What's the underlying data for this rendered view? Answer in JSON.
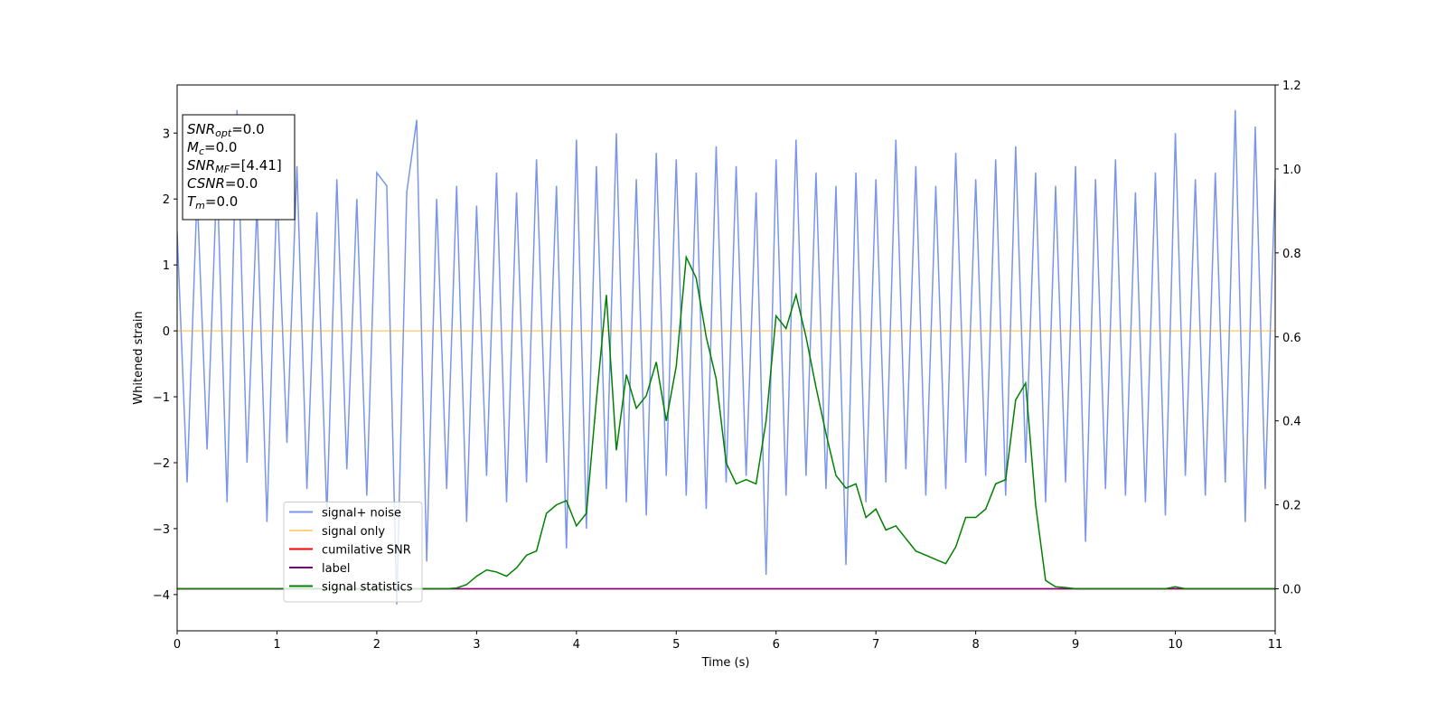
{
  "chart_data": {
    "type": "line",
    "x_label": "Time (s)",
    "y_label": "Whitened strain",
    "xlim": [
      0,
      11
    ],
    "ylim": [
      -4.55,
      3.73
    ],
    "y2lim": [
      -0.1,
      1.2
    ],
    "xticks": [
      0,
      1,
      2,
      3,
      4,
      5,
      6,
      7,
      8,
      9,
      10,
      11
    ],
    "yticks": [
      {
        "value": -4,
        "label": "−4"
      },
      {
        "value": -3,
        "label": "−3"
      },
      {
        "value": -2,
        "label": "−2"
      },
      {
        "value": -1,
        "label": "−1"
      },
      0,
      1,
      2,
      3
    ],
    "y2ticks": [
      {
        "value": 0,
        "label": "0.0"
      },
      0.2,
      0.4,
      0.6,
      0.8,
      {
        "value": 1,
        "label": "1.0"
      },
      1.2
    ],
    "legend": "lower left",
    "annotation": [
      {
        "main": "SNR",
        "sub": "opt",
        "rest": "=0.0"
      },
      {
        "main": "M",
        "sub": "c",
        "rest": "=0.0"
      },
      {
        "main": "SNR",
        "sub": "MF",
        "rest": "=[4.41]"
      },
      {
        "main": "CSNR",
        "rest": "=0.0"
      },
      {
        "main": "T",
        "sub": "m",
        "rest": "=0.0"
      }
    ],
    "x": [
      0,
      0.1,
      0.2,
      0.3,
      0.4,
      0.5,
      0.6,
      0.7,
      0.8,
      0.9,
      1,
      1.1,
      1.2,
      1.3,
      1.4,
      1.5,
      1.6,
      1.7,
      1.8,
      1.9,
      2,
      2.1,
      2.2,
      2.3,
      2.4,
      2.5,
      2.6,
      2.7,
      2.8,
      2.9,
      3,
      3.1,
      3.2,
      3.3,
      3.4,
      3.5,
      3.6,
      3.7,
      3.8,
      3.9,
      4,
      4.1,
      4.2,
      4.3,
      4.4,
      4.5,
      4.6,
      4.7,
      4.8,
      4.9,
      5,
      5.1,
      5.2,
      5.3,
      5.4,
      5.5,
      5.6,
      5.7,
      5.8,
      5.9,
      6,
      6.1,
      6.2,
      6.3,
      6.4,
      6.5,
      6.6,
      6.7,
      6.8,
      6.9,
      7,
      7.1,
      7.2,
      7.3,
      7.4,
      7.5,
      7.6,
      7.7,
      7.8,
      7.9,
      8,
      8.1,
      8.2,
      8.3,
      8.4,
      8.5,
      8.6,
      8.7,
      8.8,
      8.9,
      9,
      9.1,
      9.2,
      9.3,
      9.4,
      9.5,
      9.6,
      9.7,
      9.8,
      9.9,
      10,
      10.1,
      10.2,
      10.3,
      10.4,
      10.5,
      10.6,
      10.7,
      10.8,
      10.9,
      11
    ],
    "series": [
      {
        "name": "signal+ noise",
        "color": "#4169e1",
        "alpha": 0.7,
        "axis": "y",
        "values": [
          1.5,
          -2.3,
          2.1,
          -1.8,
          2.4,
          -2.6,
          3.35,
          -2.0,
          1.9,
          -2.9,
          2.2,
          -1.7,
          2.5,
          -2.4,
          1.8,
          -2.8,
          2.3,
          -2.1,
          2.0,
          -2.5,
          2.4,
          2.2,
          -4.15,
          2.1,
          3.2,
          -3.5,
          2.0,
          -2.4,
          2.2,
          -2.9,
          1.9,
          -2.2,
          2.4,
          -2.6,
          2.1,
          -2.3,
          2.6,
          -2.0,
          2.2,
          -3.3,
          2.9,
          -3.0,
          2.5,
          -2.4,
          3.0,
          -2.6,
          2.3,
          -2.8,
          2.7,
          -2.2,
          2.6,
          -2.5,
          2.4,
          -2.7,
          2.8,
          -2.3,
          2.5,
          -2.2,
          2.1,
          -3.7,
          2.6,
          -2.5,
          2.9,
          -2.2,
          2.4,
          -2.4,
          2.2,
          -3.55,
          2.4,
          -2.6,
          2.3,
          -2.3,
          2.9,
          -2.1,
          2.5,
          -2.5,
          2.2,
          -2.4,
          2.7,
          -2.0,
          2.3,
          -2.2,
          2.6,
          -2.5,
          2.8,
          -2.0,
          2.4,
          -2.6,
          2.2,
          -2.3,
          2.5,
          -3.2,
          2.3,
          -2.4,
          2.6,
          -2.5,
          2.1,
          -2.6,
          2.4,
          -2.8,
          3.0,
          -2.2,
          2.3,
          -2.5,
          2.4,
          -2.3,
          3.35,
          -2.9,
          3.1,
          -2.4,
          2.3
        ]
      },
      {
        "name": "signal only",
        "color": "#ffa500",
        "alpha": 0.5,
        "axis": "y",
        "values": [
          0,
          0,
          0,
          0,
          0,
          0,
          0,
          0,
          0,
          0,
          0,
          0,
          0,
          0,
          0,
          0,
          0,
          0,
          0,
          0,
          0,
          0,
          0,
          0,
          0,
          0,
          0,
          0,
          0,
          0,
          0,
          0,
          0,
          0,
          0,
          0,
          0,
          0,
          0,
          0,
          0,
          0,
          0,
          0,
          0,
          0,
          0,
          0,
          0,
          0,
          0,
          0,
          0,
          0,
          0,
          0,
          0,
          0,
          0,
          0,
          0,
          0,
          0,
          0,
          0,
          0,
          0,
          0,
          0,
          0,
          0,
          0,
          0,
          0,
          0,
          0,
          0,
          0,
          0,
          0,
          0,
          0,
          0,
          0,
          0,
          0,
          0,
          0,
          0,
          0,
          0,
          0,
          0,
          0,
          0,
          0,
          0,
          0,
          0,
          0,
          0,
          0,
          0,
          0,
          0,
          0,
          0,
          0,
          0,
          0,
          0
        ]
      },
      {
        "name": "cumilative SNR",
        "color": "#ff0000",
        "alpha": 1,
        "axis": "y2",
        "values": [
          0,
          0,
          0,
          0,
          0,
          0,
          0,
          0,
          0,
          0,
          0,
          0,
          0,
          0,
          0,
          0,
          0,
          0,
          0,
          0,
          0,
          0,
          0,
          0,
          0,
          0,
          0,
          0,
          0,
          0,
          0,
          0,
          0,
          0,
          0,
          0,
          0,
          0,
          0,
          0,
          0,
          0,
          0,
          0,
          0,
          0,
          0,
          0,
          0,
          0,
          0,
          0,
          0,
          0,
          0,
          0,
          0,
          0,
          0,
          0,
          0,
          0,
          0,
          0,
          0,
          0,
          0,
          0,
          0,
          0,
          0,
          0,
          0,
          0,
          0,
          0,
          0,
          0,
          0,
          0,
          0,
          0,
          0,
          0,
          0,
          0,
          0,
          0,
          0,
          0,
          0,
          0,
          0,
          0,
          0,
          0,
          0,
          0,
          0,
          0,
          0,
          0,
          0,
          0,
          0,
          0,
          0,
          0,
          0,
          0,
          0
        ]
      },
      {
        "name": "label",
        "color": "#800080",
        "alpha": 1,
        "axis": "y2",
        "values": [
          0,
          0,
          0,
          0,
          0,
          0,
          0,
          0,
          0,
          0,
          0,
          0,
          0,
          0,
          0,
          0,
          0,
          0,
          0,
          0,
          0,
          0,
          0,
          0,
          0,
          0,
          0,
          0,
          0,
          0,
          0,
          0,
          0,
          0,
          0,
          0,
          0,
          0,
          0,
          0,
          0,
          0,
          0,
          0,
          0,
          0,
          0,
          0,
          0,
          0,
          0,
          0,
          0,
          0,
          0,
          0,
          0,
          0,
          0,
          0,
          0,
          0,
          0,
          0,
          0,
          0,
          0,
          0,
          0,
          0,
          0,
          0,
          0,
          0,
          0,
          0,
          0,
          0,
          0,
          0,
          0,
          0,
          0,
          0,
          0,
          0,
          0,
          0,
          0,
          0,
          0,
          0,
          0,
          0,
          0,
          0,
          0,
          0,
          0,
          0,
          0,
          0,
          0,
          0,
          0,
          0,
          0,
          0,
          0,
          0,
          0
        ]
      },
      {
        "name": "signal statistics",
        "color": "#008000",
        "alpha": 1,
        "axis": "y2",
        "values": [
          0,
          0,
          0,
          0,
          0,
          0,
          0,
          0,
          0,
          0,
          0,
          0,
          0,
          0,
          0,
          0,
          0,
          0,
          0,
          0,
          0,
          0,
          0,
          0,
          0,
          0,
          0,
          0,
          0.002,
          0.01,
          0.03,
          0.045,
          0.04,
          0.03,
          0.05,
          0.08,
          0.09,
          0.18,
          0.2,
          0.21,
          0.15,
          0.18,
          0.45,
          0.7,
          0.33,
          0.51,
          0.43,
          0.46,
          0.54,
          0.4,
          0.53,
          0.79,
          0.74,
          0.6,
          0.5,
          0.3,
          0.25,
          0.26,
          0.25,
          0.4,
          0.65,
          0.62,
          0.7,
          0.6,
          0.48,
          0.37,
          0.27,
          0.24,
          0.25,
          0.17,
          0.19,
          0.14,
          0.15,
          0.12,
          0.09,
          0.08,
          0.07,
          0.06,
          0.1,
          0.17,
          0.17,
          0.19,
          0.25,
          0.26,
          0.45,
          0.49,
          0.2,
          0.02,
          0.005,
          0.003,
          0,
          0,
          0,
          0,
          0,
          0,
          0,
          0,
          0,
          0,
          0.005,
          0,
          0,
          0,
          0,
          0,
          0,
          0,
          0,
          0,
          0
        ]
      }
    ]
  }
}
